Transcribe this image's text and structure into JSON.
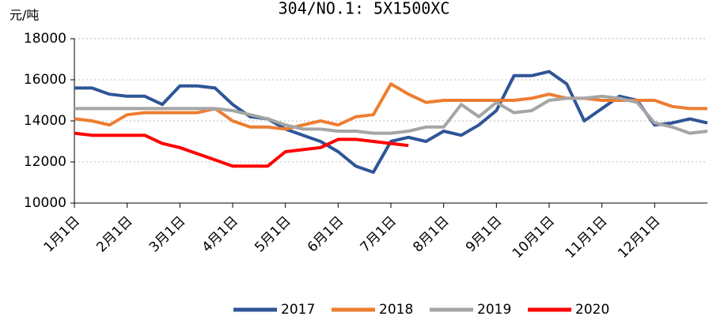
{
  "chart_data": {
    "type": "line",
    "title": "304/NO.1: 5X1500XC",
    "y_label": "元/吨",
    "categories": [
      "1月1日",
      null,
      null,
      "2月1日",
      null,
      null,
      "3月1日",
      null,
      null,
      "4月1日",
      null,
      null,
      "5月1日",
      null,
      null,
      "6月1日",
      null,
      null,
      "7月1日",
      null,
      null,
      "8月1日",
      null,
      null,
      "9月1日",
      null,
      null,
      "10月1日",
      null,
      null,
      "11月1日",
      null,
      null,
      "12月1日",
      null,
      null,
      null
    ],
    "series": [
      {
        "name": "2017",
        "color": "#2e5597",
        "values": [
          15600,
          15600,
          15300,
          15200,
          15200,
          14800,
          15700,
          15700,
          15600,
          14800,
          14200,
          14100,
          13600,
          13300,
          13000,
          12500,
          11800,
          11500,
          13000,
          13200,
          13000,
          13500,
          13300,
          13800,
          14500,
          16200,
          16200,
          16400,
          15800,
          14000,
          14600,
          15200,
          15000,
          13800,
          13900,
          14100,
          13900
        ]
      },
      {
        "name": "2018",
        "color": "#ed7d31",
        "values": [
          14100,
          14000,
          13800,
          14300,
          14400,
          14400,
          14400,
          14400,
          14600,
          14000,
          13700,
          13700,
          13600,
          13800,
          14000,
          13800,
          14200,
          14300,
          15800,
          15300,
          14900,
          15000,
          15000,
          15000,
          15000,
          15000,
          15100,
          15300,
          15100,
          15100,
          15000,
          15000,
          15000,
          15000,
          14700,
          14600,
          14600
        ]
      },
      {
        "name": "2019",
        "color": "#a5a5a5",
        "values": [
          14600,
          14600,
          14600,
          14600,
          14600,
          14600,
          14600,
          14600,
          14600,
          14500,
          14300,
          14100,
          13800,
          13600,
          13600,
          13500,
          13500,
          13400,
          13400,
          13500,
          13700,
          13700,
          14800,
          14200,
          14900,
          14400,
          14500,
          15000,
          15100,
          15100,
          15200,
          15100,
          14900,
          13900,
          13700,
          13400,
          13500
        ]
      },
      {
        "name": "2020",
        "color": "#ff0000",
        "values": [
          13400,
          13300,
          13300,
          13300,
          13300,
          12900,
          12700,
          12400,
          12100,
          11800,
          11800,
          11800,
          12500,
          12600,
          12700,
          13100,
          13100,
          13000,
          12900,
          12800,
          null,
          null,
          null,
          null,
          null,
          null,
          null,
          null,
          null,
          null,
          null,
          null,
          null,
          null,
          null,
          null,
          null
        ]
      }
    ],
    "ylim": [
      10000,
      18000
    ],
    "yticks": [
      10000,
      12000,
      14000,
      16000,
      18000
    ],
    "grid": true
  }
}
